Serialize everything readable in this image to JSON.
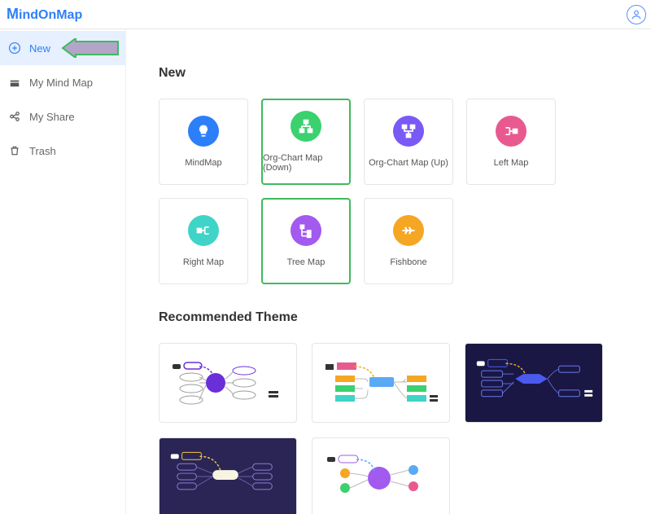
{
  "logo": "MindOnMap",
  "sidebar": {
    "items": [
      {
        "label": "New"
      },
      {
        "label": "My Mind Map"
      },
      {
        "label": "My Share"
      },
      {
        "label": "Trash"
      }
    ]
  },
  "sections": {
    "new_title": "New",
    "recommended_title": "Recommended Theme"
  },
  "templates": [
    {
      "label": "MindMap",
      "color": "#2d7ff9",
      "highlighted": false,
      "icon": "bulb"
    },
    {
      "label": "Org-Chart Map (Down)",
      "color": "#3bd16f",
      "highlighted": true,
      "icon": "org-down"
    },
    {
      "label": "Org-Chart Map (Up)",
      "color": "#7a5af5",
      "highlighted": false,
      "icon": "org-up"
    },
    {
      "label": "Left Map",
      "color": "#e85a8f",
      "highlighted": false,
      "icon": "left-map"
    },
    {
      "label": "Right Map",
      "color": "#3fd4c7",
      "highlighted": false,
      "icon": "right-map"
    },
    {
      "label": "Tree Map",
      "color": "#a25aef",
      "highlighted": true,
      "icon": "tree"
    },
    {
      "label": "Fishbone",
      "color": "#f5a623",
      "highlighted": false,
      "icon": "fishbone"
    }
  ],
  "themes": [
    {
      "bg": "#ffffff",
      "accent": "#6a2fd9",
      "style": "purple-radial"
    },
    {
      "bg": "#ffffff",
      "accent": "#5aa9f5",
      "style": "color-blocks"
    },
    {
      "bg": "#1a1744",
      "accent": "#4a5aef",
      "style": "dark-navy"
    },
    {
      "bg": "#2a2555",
      "accent": "#f5c542",
      "style": "dark-yellow"
    },
    {
      "bg": "#ffffff",
      "accent": "#a25aef",
      "style": "violet-radial"
    }
  ],
  "colors": {
    "arrow_fill": "#b3a5c7",
    "arrow_stroke": "#3fba5d"
  }
}
